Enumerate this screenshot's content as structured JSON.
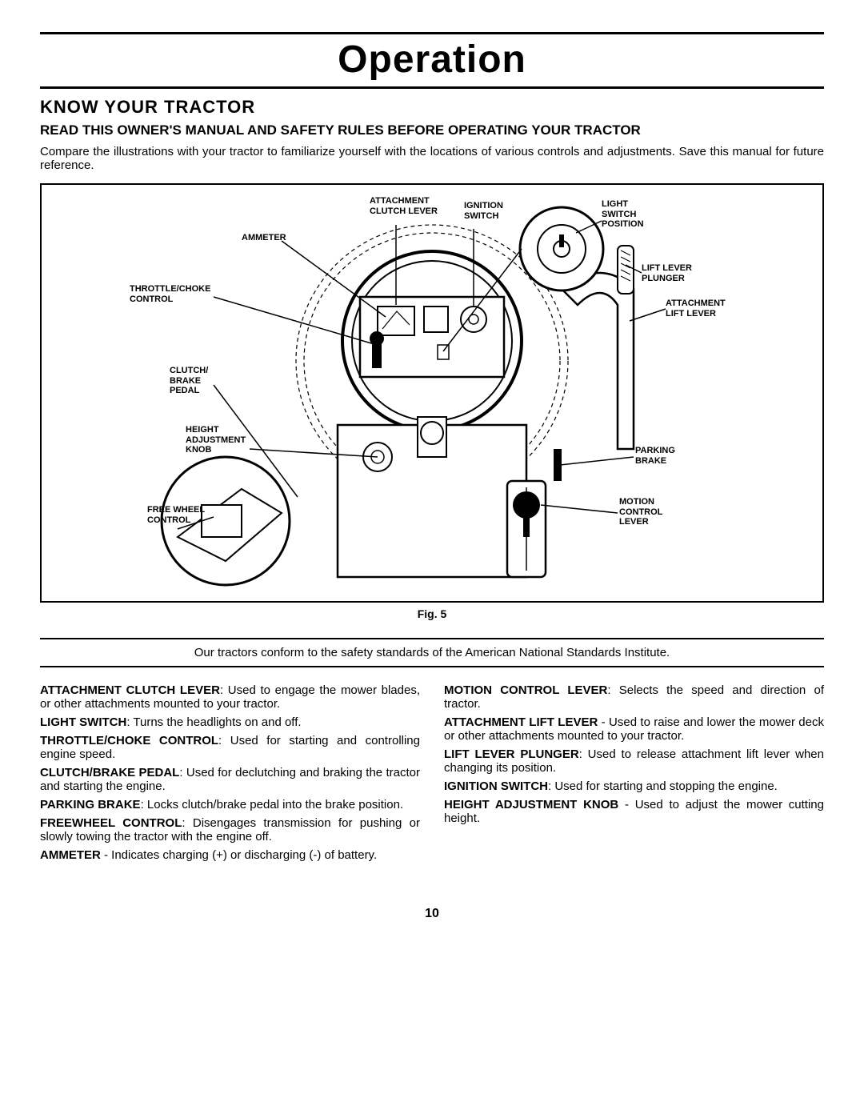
{
  "title": "Operation",
  "section_heading": "KNOW YOUR TRACTOR",
  "warning_line": "READ THIS OWNER'S MANUAL AND SAFETY RULES BEFORE OPERATING YOUR TRACTOR",
  "intro_text": "Compare the illustrations with your tractor to familiarize yourself with the locations of various controls and adjustments. Save this manual for future reference.",
  "figure_caption": "Fig. 5",
  "ansi_text": "Our tractors conform to the safety standards of the American National Standards Institute.",
  "page_number": "10",
  "diagram": {
    "labels": {
      "attachment_clutch_lever": "ATTACHMENT\nCLUTCH LEVER",
      "ignition_switch": "IGNITION\nSWITCH",
      "ammeter": "AMMETER",
      "throttle_choke": "THROTTLE/CHOKE\nCONTROL",
      "clutch_brake_pedal": "CLUTCH/\nBRAKE\nPEDAL",
      "height_adj_knob": "HEIGHT\nADJUSTMENT\nKNOB",
      "free_wheel": "FREE WHEEL\nCONTROL",
      "light_switch": "LIGHT\nSWITCH\nPOSITION",
      "lift_plunger": "LIFT LEVER\nPLUNGER",
      "attachment_lift_lever": "ATTACHMENT\nLIFT LEVER",
      "parking_brake": "PARKING\nBRAKE",
      "motion_control": "MOTION\nCONTROL\nLEVER"
    }
  },
  "definitions": {
    "left": [
      {
        "term": "ATTACHMENT CLUTCH LEVER",
        "text": ": Used to engage the mower blades, or other attachments mounted to your tractor."
      },
      {
        "term": "LIGHT SWITCH",
        "text": ": Turns the headlights on and off."
      },
      {
        "term": "THROTTLE/CHOKE CONTROL",
        "text": ": Used for starting and controlling engine speed."
      },
      {
        "term": "CLUTCH/BRAKE PEDAL",
        "text": ": Used for declutching and braking the tractor and starting the engine."
      },
      {
        "term": "PARKING BRAKE",
        "text": ": Locks clutch/brake pedal into the brake position."
      },
      {
        "term": "FREEWHEEL CONTROL",
        "text": ": Disengages transmission for pushing or slowly towing the tractor with the engine off."
      },
      {
        "term": "AMMETER",
        "text": " - Indicates charging (+) or discharging (-) of battery."
      }
    ],
    "right": [
      {
        "term": "MOTION CONTROL LEVER",
        "text": ": Selects the speed and direction of tractor."
      },
      {
        "term": "ATTACHMENT LIFT LEVER",
        "text": " - Used to raise and lower the mower deck or other attachments mounted to your tractor."
      },
      {
        "term": "LIFT LEVER PLUNGER",
        "text": ": Used to release attachment lift lever when changing its position."
      },
      {
        "term": "IGNITION SWITCH",
        "text": ": Used for starting and stopping the engine."
      },
      {
        "term": "HEIGHT ADJUSTMENT KNOB",
        "text": " - Used to adjust the mower cutting height."
      }
    ]
  }
}
